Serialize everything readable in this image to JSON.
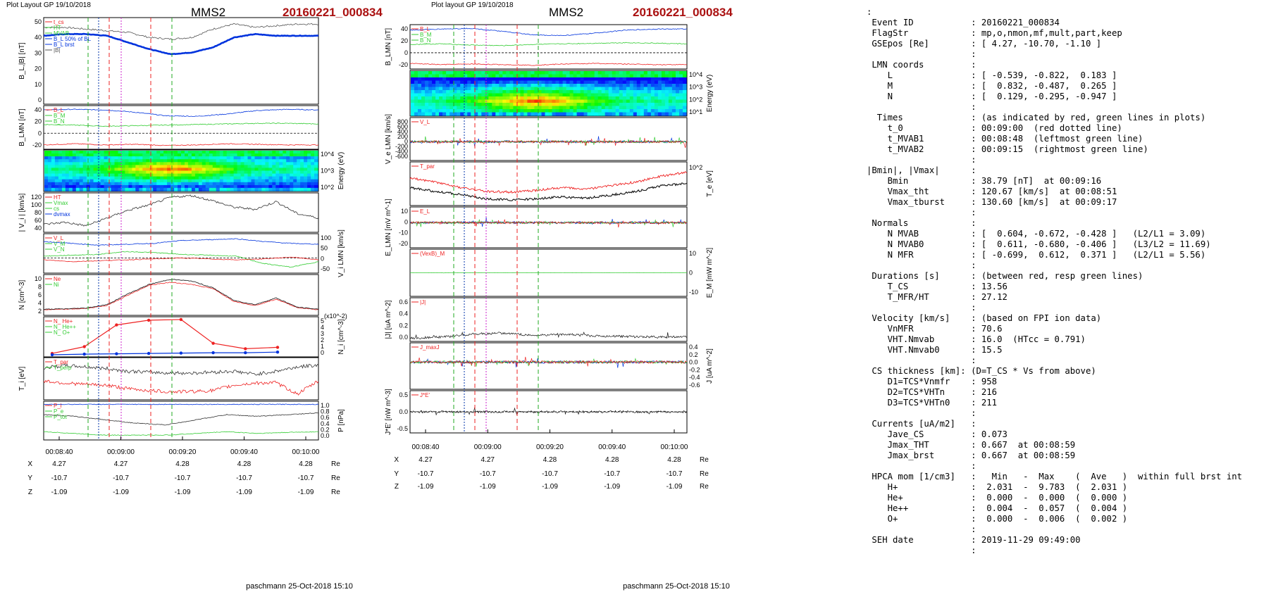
{
  "chart_data": [
    {
      "type": "line",
      "header": {
        "left": "Plot Layout GP 19/10/2018",
        "spacecraft": "MMS2",
        "event": "20160221_000834"
      },
      "footer": "paschmann 25-Oct-2018 15:10",
      "time_ticks": [
        "00:08:40",
        "00:09:00",
        "00:09:20",
        "00:09:40",
        "00:10:00"
      ],
      "position_table": {
        "rows": [
          {
            "label": "X",
            "values": [
              "4.27",
              "4.27",
              "4.28",
              "4.28",
              "4.28"
            ],
            "unit": "Re"
          },
          {
            "label": "Y",
            "values": [
              "-10.7",
              "-10.7",
              "-10.7",
              "-10.7",
              "-10.7"
            ],
            "unit": "Re"
          },
          {
            "label": "Z",
            "values": [
              "-1.09",
              "-1.09",
              "-1.09",
              "-1.09",
              "-1.09"
            ],
            "unit": "Re"
          }
        ]
      },
      "panels": [
        {
          "ylabel": "B_L,|B| [nT]",
          "ylim": [
            0,
            50
          ],
          "ticks": [
            "50",
            "40",
            "30",
            "20",
            "10",
            "0"
          ],
          "legend": [
            "t_cs",
            "HT",
            "MVAB",
            "B_L 50% of BL",
            "B_L brst",
            "|B|"
          ],
          "series": [
            {
              "name": "|B|",
              "color": "#555555",
              "values": [
                45,
                45,
                44,
                43,
                42,
                39,
                38,
                39,
                44,
                47,
                45,
                46,
                47,
                47
              ]
            },
            {
              "name": "B_L",
              "color": "#0033dd",
              "values": [
                40,
                41,
                41,
                40,
                36,
                32,
                29,
                30,
                33,
                39,
                41,
                40,
                40,
                40
              ]
            }
          ]
        },
        {
          "ylabel": "B_LMN [nT]",
          "ylim": [
            -25,
            45
          ],
          "ticks": [
            "40",
            "20",
            "0",
            "-20"
          ],
          "legend": [
            "B_L",
            "B_M",
            "B_N"
          ],
          "series": [
            {
              "name": "B_L",
              "color": "#0033dd",
              "values": [
                40,
                41,
                40,
                36,
                30,
                29,
                33,
                39,
                41,
                40
              ]
            },
            {
              "name": "B_M",
              "color": "#33cc33",
              "values": [
                15,
                14,
                12,
                13,
                14,
                15,
                16,
                17,
                17,
                16
              ]
            },
            {
              "name": "B_N",
              "color": "#ee2222",
              "values": [
                -20,
                -18,
                -20,
                -19,
                -21,
                -20,
                -18,
                -19,
                -20,
                -20
              ]
            }
          ]
        },
        {
          "ylabel": "Energy (eV)",
          "type": "heatmap",
          "ticks": [
            "10^4",
            "10^3",
            "10^2"
          ]
        },
        {
          "ylabel": "| V_i | [km/s]",
          "ylim": [
            40,
            125
          ],
          "ticks": [
            "120",
            "100",
            "80",
            "60",
            "40"
          ],
          "legend": [
            "HT",
            "Vmax",
            "cs",
            "dvmax"
          ],
          "series": [
            {
              "name": "|Vi|",
              "color": "#333333",
              "values": [
                55,
                60,
                52,
                70,
                88,
                100,
                118,
                122,
                110,
                95,
                90,
                108,
                80,
                70
              ]
            }
          ]
        },
        {
          "ylabel": "V_i LMN [km/s]",
          "ylim": [
            -75,
            125
          ],
          "ticks": [
            "100",
            "50",
            "0",
            "-50"
          ],
          "legend": [
            "V_L",
            "V_M",
            "V_N"
          ],
          "series": [
            {
              "name": "V_L",
              "color": "#0033dd",
              "values": [
                90,
                80,
                70,
                75,
                80,
                95,
                100,
                105,
                90,
                80,
                75
              ]
            },
            {
              "name": "V_M",
              "color": "#33cc33",
              "values": [
                10,
                15,
                20,
                35,
                30,
                20,
                15,
                10,
                -30,
                -50,
                -20
              ]
            },
            {
              "name": "V_N",
              "color": "#ee2222",
              "values": [
                -10,
                -20,
                -15,
                -10,
                -5,
                0,
                -5,
                -10,
                -5,
                5,
                -10
              ]
            }
          ]
        },
        {
          "ylabel": "N [cm^-3]",
          "ylim": [
            1,
            10
          ],
          "ticks": [
            "10",
            "8",
            "6",
            "4",
            "2"
          ],
          "legend": [
            "Ne",
            "Ni"
          ],
          "series": [
            {
              "name": "Ne",
              "color": "#ee2222",
              "values": [
                2,
                2.1,
                2.3,
                3,
                5.5,
                7.8,
                8.5,
                8,
                7,
                4,
                3,
                4.5,
                2.5,
                2
              ]
            },
            {
              "name": "Ni",
              "color": "#111111",
              "values": [
                2.1,
                2.2,
                2.4,
                3.2,
                5.8,
                8,
                9.2,
                8.8,
                7.2,
                4.2,
                3.2,
                4.8,
                2.6,
                2.1
              ]
            }
          ]
        },
        {
          "ylabel": "N_i [cm^-3]",
          "ylim": [
            0,
            5.5
          ],
          "ticks": [
            "5",
            "4",
            "3",
            "2",
            "1",
            "0"
          ],
          "annotation": "(x10^-2)",
          "legend": [
            "N_ He+",
            "N_ He++",
            "N_ O+"
          ],
          "series": [
            {
              "name": "He++",
              "color": "#ee2222",
              "values": [
                0.3,
                1.3,
                4.5,
                5.2,
                5.3,
                1.8,
                1.0,
                1.2
              ]
            },
            {
              "name": "O+",
              "color": "#0033dd",
              "values": [
                0.1,
                0.2,
                0.25,
                0.3,
                0.35,
                0.4,
                0.4,
                0.5
              ]
            }
          ]
        },
        {
          "ylabel": "T_i [eV]",
          "ticks": [],
          "legend": [
            "T_par",
            "T_perp"
          ],
          "series": [
            {
              "name": "T1",
              "color": "#333333",
              "values": [
                70,
                75,
                72,
                68,
                62,
                60,
                58,
                58,
                60,
                62,
                55,
                62,
                72,
                76
              ]
            },
            {
              "name": "T2",
              "color": "#ee2222",
              "values": [
                40,
                35,
                32,
                30,
                22,
                18,
                15,
                16,
                18,
                30,
                35,
                36,
                10,
                40
              ]
            }
          ]
        },
        {
          "ylabel": "P [nPa]",
          "ylim": [
            0,
            1.05
          ],
          "ticks": [
            "1.0",
            "0.8",
            "0.6",
            "0.4",
            "0.2",
            "0.0"
          ],
          "legend": [
            "P_i",
            "P_e",
            "P_tot"
          ],
          "series": [
            {
              "name": "P_tot",
              "color": "#0033dd",
              "values": [
                1.0,
                1.0,
                1.0,
                1.0,
                1.0,
                1.0,
                1.0,
                1.0,
                1.0,
                1.0
              ]
            },
            {
              "name": "P_i",
              "color": "#333333",
              "values": [
                0.7,
                0.65,
                0.55,
                0.45,
                0.4,
                0.55,
                0.7,
                0.65,
                0.7,
                0.75
              ]
            },
            {
              "name": "P_e",
              "color": "#33cc33",
              "values": [
                0.2,
                0.15,
                0.1,
                0.1,
                0.1,
                0.15,
                0.2,
                0.15,
                0.18,
                0.2
              ]
            }
          ]
        }
      ]
    },
    {
      "type": "line",
      "header": {
        "left": "Plot layout GP 19/10/2018",
        "spacecraft": "MMS2",
        "event": "20160221_000834"
      },
      "footer": "paschmann 25-Oct-2018 15:10",
      "time_ticks": [
        "00:08:40",
        "00:09:00",
        "00:09:20",
        "00:09:40",
        "00:10:00"
      ],
      "position_table": {
        "rows": [
          {
            "label": "X",
            "values": [
              "4.27",
              "4.27",
              "4.28",
              "4.28",
              "4.28"
            ],
            "unit": "Re"
          },
          {
            "label": "Y",
            "values": [
              "-10.7",
              "-10.7",
              "-10.7",
              "-10.7",
              "-10.7"
            ],
            "unit": "Re"
          },
          {
            "label": "Z",
            "values": [
              "-1.09",
              "-1.09",
              "-1.09",
              "-1.09",
              "-1.09"
            ],
            "unit": "Re"
          }
        ]
      },
      "panels": [
        {
          "ylabel": "B_LMN [nT]",
          "ylim": [
            -25,
            45
          ],
          "ticks": [
            "40",
            "20",
            "0",
            "-20"
          ],
          "legend": [
            "B_L",
            "B_M",
            "B_N"
          ],
          "series": [
            {
              "name": "B_L",
              "color": "#0033dd",
              "values": [
                38,
                40,
                41,
                36,
                30,
                29,
                33,
                38,
                40,
                40
              ]
            },
            {
              "name": "B_M",
              "color": "#33cc33",
              "values": [
                14,
                15,
                13,
                12,
                14,
                15,
                16,
                17,
                16,
                15
              ]
            },
            {
              "name": "B_N",
              "color": "#ee2222",
              "values": [
                -18,
                -20,
                -19,
                -20,
                -21,
                -19,
                -18,
                -19,
                -20,
                -20
              ]
            }
          ]
        },
        {
          "ylabel": "Energy (eV)",
          "type": "heatmap",
          "ticks": [
            "10^4",
            "10^3",
            "10^2",
            "10^1"
          ]
        },
        {
          "ylabel": "V_e LMN [km/s]",
          "ylim": [
            -650,
            850
          ],
          "ticks": [
            "800",
            "600",
            "400",
            "200",
            "0",
            "-200",
            "-400",
            "-600"
          ],
          "legend": [
            "V_L"
          ]
        },
        {
          "ylabel": "T_e [eV]",
          "ticks": [
            "10^2"
          ],
          "legend": [
            "T_par"
          ]
        },
        {
          "ylabel": "E_LMN [mV m^-1]",
          "ylim": [
            -25,
            15
          ],
          "ticks": [
            "10",
            "0",
            "-10",
            "-20"
          ],
          "legend": [
            "E_L"
          ]
        },
        {
          "ylabel": "E_M [mW m^-2]",
          "ticks": [
            "10",
            "0",
            "-10"
          ],
          "legend": [
            "(VexB)_M"
          ]
        },
        {
          "ylabel": "|J| [uA m^-2]",
          "ylim": [
            0,
            0.7
          ],
          "ticks": [
            "0.6",
            "0.4",
            "0.2",
            "0.0"
          ],
          "legend": [
            "|J|"
          ]
        },
        {
          "ylabel": "J [uA m^-2]",
          "ylim": [
            -0.65,
            0.45
          ],
          "ticks": [
            "0.4",
            "0.2",
            "0.0",
            "-0.2",
            "-0.4",
            "-0.6"
          ],
          "legend": [
            "J_maxJ"
          ]
        },
        {
          "ylabel": "J*E' [nW m^-3]",
          "ylim": [
            -0.65,
            0.65
          ],
          "ticks": [
            "0.5",
            "0.0",
            "-0.5"
          ],
          "legend": [
            "J*E'"
          ]
        }
      ]
    }
  ],
  "info_panel": {
    "lines": [
      ":",
      " Event ID           : 20160221_000834",
      " FlagStr            : mp,o,nmon,mf,mult,part,keep",
      " GSEpos [Re]        : [ 4.27, -10.70, -1.10 ]",
      "                    :",
      " LMN coords         :",
      "    L               : [ -0.539, -0.822,  0.183 ]",
      "    M               : [  0.832, -0.487,  0.265 ]",
      "    N               : [  0.129, -0.295, -0.947 ]",
      "                    :",
      "  Times             : (as indicated by red, green lines in plots)",
      "    t_0             : 00:09:00  (red dotted line)",
      "    t_MVAB1         : 00:08:48  (leftmost green line)",
      "    t_MVAB2         : 00:09:15  (rightmost green line)",
      "                    :",
      "|Bmin|, |Vmax|      :",
      "    Bmin            : 38.79 [nT]  at 00:09:16",
      "    Vmax_tht        : 120.67 [km/s]  at 00:08:51",
      "    Vmax_tburst     : 130.60 [km/s]  at 00:09:17",
      "                    :",
      " Normals            :",
      "    N MVAB          : [  0.604, -0.672, -0.428 ]   (L2/L1 = 3.09)",
      "    N MVAB0         : [  0.611, -0.680, -0.406 ]   (L3/L2 = 11.69)",
      "    N MFR           : [ -0.699,  0.612,  0.371 ]   (L2/L1 = 5.56)",
      "                    :",
      " Durations [s]      : (between red, resp green lines)",
      "    T_CS            : 13.56",
      "    T_MFR/HT        : 27.12",
      "                    :",
      " Velocity [km/s]    : (based on FPI ion data)",
      "    VnMFR           : 70.6",
      "    VHT.Nmvab       : 16.0  (HTcc = 0.791)",
      "    VHT.Nmvab0      : 15.5",
      "                    :",
      " CS thickness [km]: (D=T_CS * Vs from above)",
      "    D1=TCS*Vnmfr    : 958",
      "    D2=TCS*VHTn     : 216",
      "    D3=TCS*VHTn0    : 211",
      "                    :",
      " Currents [uA/m2]   :",
      "    Jave_CS         : 0.073",
      "    Jmax_THT        : 0.667  at 00:08:59",
      "    Jmax_brst       : 0.667  at 00:08:59",
      "                    :",
      " HPCA mom [1/cm3]   :   Min   -  Max    (  Ave   )  within full brst int",
      "    H+              :  2.031  -  9.783  (  2.031 )",
      "    He+             :  0.000  -  0.000  (  0.000 )",
      "    He++            :  0.004  -  0.057  (  0.004 )",
      "    O+              :  0.000  -  0.006  (  0.002 )",
      "                    :",
      " SEH date           : 2019-11-29 09:49:00",
      "                    :"
    ]
  },
  "colors": {
    "title_red": "#aa1111",
    "blue": "#0033dd",
    "green": "#33cc33",
    "red": "#ee2222",
    "black": "#111111"
  }
}
